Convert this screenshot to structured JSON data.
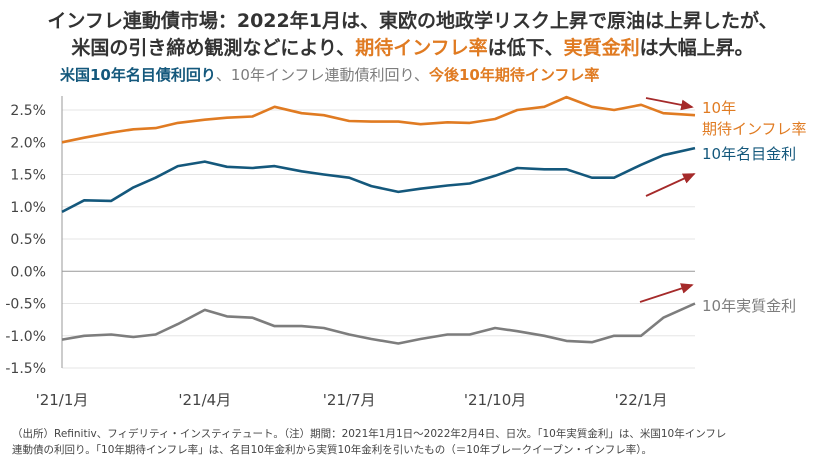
{
  "title_line1": "インフレ連動債市場：2022年1月は、東欧の地政学リスク上昇で原油は上昇したが、",
  "title_line2_a": "米国の引き締め観測などにより、",
  "title_line2_b": "期待インフレ率",
  "title_line2_c": "は低下、",
  "title_line2_d": "実質金利",
  "title_line2_e": "は大幅上昇。",
  "subtitle": {
    "nominal": "米国10年名目債利回り",
    "sep1": "、",
    "tips": "10年インフレ連動債利回り",
    "sep2": "、",
    "bei": "今後10年期待インフレ率"
  },
  "footnote_line1": "（出所）Refinitiv、フィデリティ・インスティテュート。（注）期間：2021年1月1日～2022年2月4日、日次。「10年実質金利」は、米国10年インフレ",
  "footnote_line2": "連動債の利回り。「10年期待インフレ率」は、名目10年金利から実質10年金利を引いたもの（＝10年ブレークイーブン・インフレ率）。",
  "colors": {
    "nominal": "#14587c",
    "bei": "#e07b22",
    "real": "#7d7d7d",
    "arrow": "#a52a2a",
    "axis": "#999999",
    "grid": "#e5e5e5"
  },
  "chart_data": {
    "type": "line",
    "yticks": [
      "2.5%",
      "2.0%",
      "1.5%",
      "1.0%",
      "0.5%",
      "0.0%",
      "-0.5%",
      "-1.0%",
      "-1.5%"
    ],
    "ytick_values": [
      2.5,
      2.0,
      1.5,
      1.0,
      0.5,
      0.0,
      -0.5,
      -1.0,
      -1.5
    ],
    "ylim": [
      -1.5,
      2.5
    ],
    "xticks": [
      "'21/1月",
      "'21/4月",
      "'21/7月",
      "'21/10月",
      "'22/1月"
    ],
    "xtick_dates": [
      "2021-01-01",
      "2021-04-01",
      "2021-07-01",
      "2021-10-01",
      "2022-01-01"
    ],
    "xlim": [
      "2021-01-01",
      "2022-02-04"
    ],
    "labels": {
      "bei_line1": "10年",
      "bei_line2": "期待インフレ率",
      "nominal": "10年名目金利",
      "real": "10年実質金利"
    },
    "series": [
      {
        "key": "bei",
        "x": [
          "2021-01-01",
          "2021-01-15",
          "2021-02-01",
          "2021-02-15",
          "2021-03-01",
          "2021-03-15",
          "2021-04-01",
          "2021-04-15",
          "2021-05-01",
          "2021-05-15",
          "2021-06-01",
          "2021-06-15",
          "2021-07-01",
          "2021-07-15",
          "2021-08-01",
          "2021-08-15",
          "2021-09-01",
          "2021-09-15",
          "2021-10-01",
          "2021-10-15",
          "2021-11-01",
          "2021-11-15",
          "2021-12-01",
          "2021-12-15",
          "2022-01-01",
          "2022-01-15",
          "2022-02-04"
        ],
        "values": [
          2.0,
          2.07,
          2.15,
          2.2,
          2.22,
          2.3,
          2.35,
          2.38,
          2.4,
          2.55,
          2.45,
          2.42,
          2.33,
          2.32,
          2.32,
          2.28,
          2.31,
          2.3,
          2.36,
          2.5,
          2.55,
          2.7,
          2.55,
          2.5,
          2.58,
          2.45,
          2.42
        ]
      },
      {
        "key": "nominal",
        "x": [
          "2021-01-01",
          "2021-01-15",
          "2021-02-01",
          "2021-02-15",
          "2021-03-01",
          "2021-03-15",
          "2021-04-01",
          "2021-04-15",
          "2021-05-01",
          "2021-05-15",
          "2021-06-01",
          "2021-06-15",
          "2021-07-01",
          "2021-07-15",
          "2021-08-01",
          "2021-08-15",
          "2021-09-01",
          "2021-09-15",
          "2021-10-01",
          "2021-10-15",
          "2021-11-01",
          "2021-11-15",
          "2021-12-01",
          "2021-12-15",
          "2022-01-01",
          "2022-01-15",
          "2022-02-04"
        ],
        "values": [
          0.92,
          1.1,
          1.09,
          1.3,
          1.45,
          1.63,
          1.7,
          1.62,
          1.6,
          1.63,
          1.55,
          1.5,
          1.45,
          1.32,
          1.23,
          1.28,
          1.33,
          1.36,
          1.48,
          1.6,
          1.58,
          1.58,
          1.45,
          1.45,
          1.65,
          1.8,
          1.91
        ]
      },
      {
        "key": "real",
        "x": [
          "2021-01-01",
          "2021-01-15",
          "2021-02-01",
          "2021-02-15",
          "2021-03-01",
          "2021-03-15",
          "2021-04-01",
          "2021-04-15",
          "2021-05-01",
          "2021-05-15",
          "2021-06-01",
          "2021-06-15",
          "2021-07-01",
          "2021-07-15",
          "2021-08-01",
          "2021-08-15",
          "2021-09-01",
          "2021-09-15",
          "2021-10-01",
          "2021-10-15",
          "2021-11-01",
          "2021-11-15",
          "2021-12-01",
          "2021-12-15",
          "2022-01-01",
          "2022-01-15",
          "2022-02-04"
        ],
        "values": [
          -1.06,
          -1.0,
          -0.98,
          -1.02,
          -0.98,
          -0.82,
          -0.6,
          -0.7,
          -0.72,
          -0.85,
          -0.85,
          -0.88,
          -0.98,
          -1.05,
          -1.12,
          -1.05,
          -0.98,
          -0.98,
          -0.88,
          -0.93,
          -1.0,
          -1.08,
          -1.1,
          -1.0,
          -1.0,
          -0.72,
          -0.5
        ]
      }
    ]
  }
}
